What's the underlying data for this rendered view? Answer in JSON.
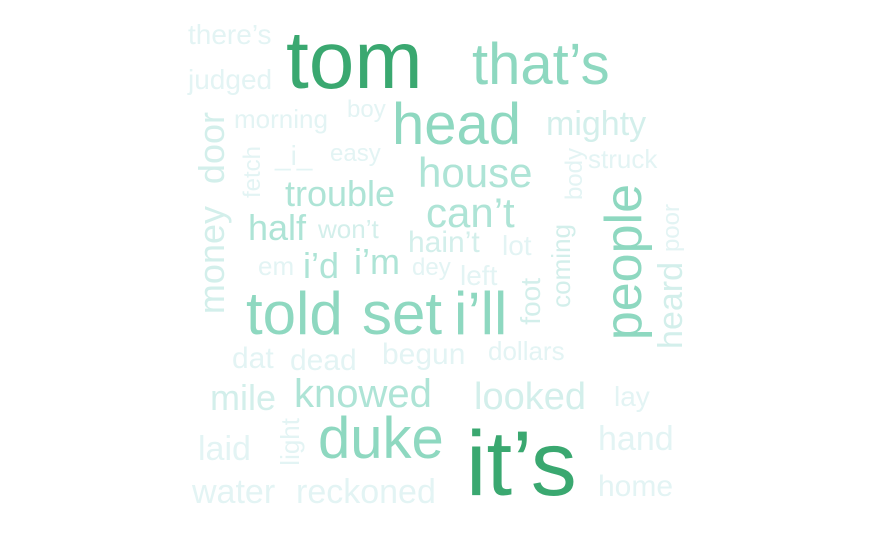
{
  "colors": {
    "strong": "#3aa870",
    "mid": "#8ed8c0",
    "soft": "#aee4d6",
    "light": "#d3efeb",
    "faint": "#e3f4f4"
  },
  "words": [
    {
      "text": "tom",
      "color": "strong"
    },
    {
      "text": "it’s",
      "color": "strong"
    },
    {
      "text": "that’s",
      "color": "mid"
    },
    {
      "text": "head",
      "color": "mid"
    },
    {
      "text": "people",
      "color": "mid"
    },
    {
      "text": "duke",
      "color": "mid"
    },
    {
      "text": "told",
      "color": "mid"
    },
    {
      "text": "set",
      "color": "mid"
    },
    {
      "text": "i’ll",
      "color": "mid"
    },
    {
      "text": "house",
      "color": "soft"
    },
    {
      "text": "can’t",
      "color": "soft"
    },
    {
      "text": "trouble",
      "color": "soft"
    },
    {
      "text": "half",
      "color": "soft"
    },
    {
      "text": "i’d",
      "color": "soft"
    },
    {
      "text": "i’m",
      "color": "soft"
    },
    {
      "text": "knowed",
      "color": "soft"
    },
    {
      "text": "looked",
      "color": "light"
    },
    {
      "text": "mighty",
      "color": "light"
    },
    {
      "text": "money",
      "color": "light"
    },
    {
      "text": "door",
      "color": "light"
    },
    {
      "text": "mile",
      "color": "light"
    },
    {
      "text": "hain’t",
      "color": "light"
    },
    {
      "text": "won’t",
      "color": "light"
    },
    {
      "text": "heard",
      "color": "light"
    },
    {
      "text": "foot",
      "color": "light"
    },
    {
      "text": "coming",
      "color": "light"
    },
    {
      "text": "begun",
      "color": "faint"
    },
    {
      "text": "dollars",
      "color": "faint"
    },
    {
      "text": "dead",
      "color": "faint"
    },
    {
      "text": "dat",
      "color": "faint"
    },
    {
      "text": "reckoned",
      "color": "faint"
    },
    {
      "text": "water",
      "color": "faint"
    },
    {
      "text": "laid",
      "color": "faint"
    },
    {
      "text": "light",
      "color": "faint"
    },
    {
      "text": "hand",
      "color": "faint"
    },
    {
      "text": "home",
      "color": "faint"
    },
    {
      "text": "lay",
      "color": "faint"
    },
    {
      "text": "there’s",
      "color": "faint"
    },
    {
      "text": "judged",
      "color": "faint"
    },
    {
      "text": "morning",
      "color": "faint"
    },
    {
      "text": "boy",
      "color": "faint"
    },
    {
      "text": "easy",
      "color": "faint"
    },
    {
      "text": "_i_",
      "color": "faint"
    },
    {
      "text": "fetch",
      "color": "faint"
    },
    {
      "text": "struck",
      "color": "faint"
    },
    {
      "text": "body",
      "color": "faint"
    },
    {
      "text": "poor",
      "color": "faint"
    },
    {
      "text": "lot",
      "color": "faint"
    },
    {
      "text": "dey",
      "color": "faint"
    },
    {
      "text": "left",
      "color": "faint"
    },
    {
      "text": "em",
      "color": "faint"
    }
  ]
}
